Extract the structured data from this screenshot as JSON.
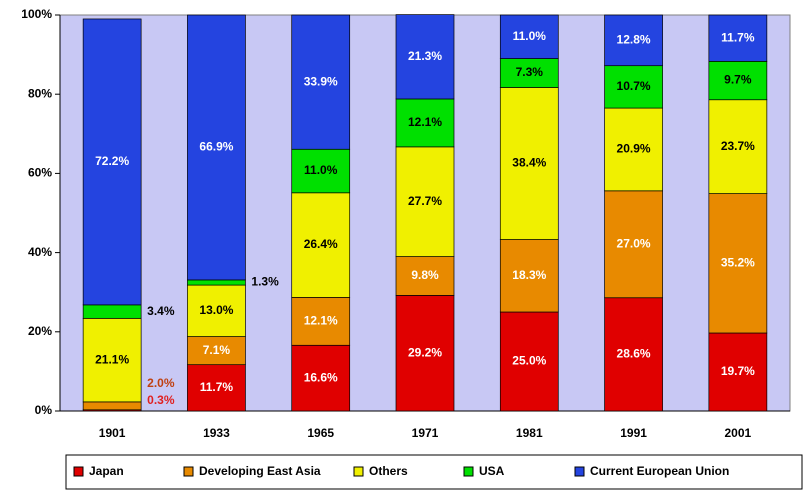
{
  "chart_data": {
    "type": "stacked_bar_100",
    "categories": [
      "1901",
      "1933",
      "1965",
      "1971",
      "1981",
      "1991",
      "2001"
    ],
    "series": [
      {
        "name": "Japan",
        "color": "#e00000",
        "label_color": "#ffffff",
        "outside_label_color": "#e02020",
        "values": [
          0.3,
          11.7,
          16.6,
          29.2,
          25.0,
          28.6,
          19.7
        ],
        "value_labels": [
          "0.3%",
          "11.7%",
          "16.6%",
          "29.2%",
          "25.0%",
          "28.6%",
          "19.7%"
        ]
      },
      {
        "name": "Developing East Asia",
        "color": "#e88a00",
        "label_color": "#ffffff",
        "outside_label_color": "#c04010",
        "values": [
          2.0,
          7.1,
          12.1,
          9.8,
          18.3,
          27.0,
          35.2
        ],
        "value_labels": [
          "2.0%",
          "7.1%",
          "12.1%",
          "9.8%",
          "18.3%",
          "27.0%",
          "35.2%"
        ]
      },
      {
        "name": "Others",
        "color": "#f0f000",
        "label_color": "#000000",
        "outside_label_color": "#000000",
        "values": [
          21.1,
          13.0,
          26.4,
          27.7,
          38.4,
          20.9,
          23.7
        ],
        "value_labels": [
          "21.1%",
          "13.0%",
          "26.4%",
          "27.7%",
          "38.4%",
          "20.9%",
          "23.7%"
        ]
      },
      {
        "name": "USA",
        "color": "#00e000",
        "label_color": "#000000",
        "outside_label_color": "#000000",
        "values": [
          3.4,
          1.3,
          11.0,
          12.1,
          7.3,
          10.7,
          9.7
        ],
        "value_labels": [
          "3.4%",
          "1.3%",
          "11.0%",
          "12.1%",
          "7.3%",
          "10.7%",
          "9.7%"
        ]
      },
      {
        "name": "Current European Union",
        "color": "#2444e0",
        "label_color": "#ffffff",
        "outside_label_color": "#000000",
        "values": [
          72.2,
          66.9,
          33.9,
          21.3,
          11.0,
          12.8,
          11.7
        ],
        "value_labels": [
          "72.2%",
          "66.9%",
          "33.9%",
          "21.3%",
          "11.0%",
          "12.8%",
          "11.7%"
        ]
      }
    ],
    "ylim": [
      0,
      100
    ],
    "yticks": [
      {
        "value": 0,
        "label": "0%"
      },
      {
        "value": 20,
        "label": "20%"
      },
      {
        "value": 40,
        "label": "40%"
      },
      {
        "value": 60,
        "label": "60%"
      },
      {
        "value": 80,
        "label": "80%"
      },
      {
        "value": 100,
        "label": "100%"
      }
    ],
    "legend": "bottom",
    "plot_background": "#c8c8f4"
  }
}
